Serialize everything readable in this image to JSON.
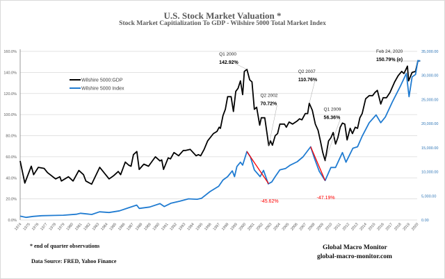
{
  "header": {
    "title": "U.S. Stock Market Valuation *",
    "subtitle": "Stock Market Capitialization To GDP -   Wilshire 5000 Total Market Index"
  },
  "footer": {
    "note": "*   end of quarter  observations",
    "source": "Data Source:  FRED, Yahoo  Finance",
    "brand": "Global Macro Monitor",
    "url": "global-macro-monitor.com"
  },
  "colors": {
    "ratio": "#000000",
    "index": "#1f7bd1",
    "drawdown": "#ff0000",
    "grid": "#d9d9d9",
    "right_axis": "#2e75b6"
  },
  "chart_data": {
    "type": "line",
    "title": "U.S. Stock Market Valuation *",
    "subtitle": "Stock Market Capitialization To GDP -   Wilshire 5000 Total Market Index",
    "xlim": [
      1974,
      2020
    ],
    "x_ticks": [
      "1974",
      "1975",
      "1976",
      "1977",
      "1978",
      "1979",
      "1980",
      "1981",
      "1982",
      "1983",
      "1984",
      "1985",
      "1986",
      "1987",
      "1988",
      "1989",
      "1990",
      "1991",
      "1992",
      "1993",
      "1994",
      "1995",
      "1996",
      "1997",
      "1998",
      "1999",
      "2000",
      "2001",
      "2002",
      "2003",
      "2004",
      "2005",
      "2006",
      "2007",
      "2008",
      "2009",
      "2010",
      "2011",
      "2012",
      "2013",
      "2014",
      "2015",
      "2016",
      "2017",
      "2018",
      "2019",
      "2020"
    ],
    "left_axis": {
      "ylim": [
        0,
        160
      ],
      "ticks": [
        "0.0%",
        "20.0%",
        "40.0%",
        "60.0%",
        "80.0%",
        "100.0%",
        "120.0%",
        "140.0%",
        "160.0%"
      ]
    },
    "right_axis": {
      "ylim": [
        0,
        35000
      ],
      "ticks": [
        "0.00",
        "5,000.00",
        "10,000.00",
        "15,000.00",
        "20,000.00",
        "25,000.00",
        "30,000.00",
        "35,000.00"
      ]
    },
    "grid": true,
    "legend": {
      "placement": "top-left",
      "entries": [
        "Wilshire 5000:GDP",
        "Wilshire 5000 Index"
      ]
    },
    "series": [
      {
        "name": "Wilshire 5000:GDP",
        "axis": "left",
        "unit": "%",
        "x": [
          1974.0,
          1974.54,
          1975.29,
          1975.56,
          1976.1,
          1976.77,
          1977.17,
          1978.11,
          1978.6,
          1978.78,
          1979.59,
          1980.13,
          1980.8,
          1981.34,
          1981.61,
          1982.28,
          1983.22,
          1984.3,
          1984.83,
          1985.37,
          1985.64,
          1986.18,
          1986.58,
          1986.85,
          1987.12,
          1987.52,
          1987.79,
          1988.33,
          1988.87,
          1989.67,
          1990.21,
          1990.4,
          1990.61,
          1991.15,
          1991.42,
          1991.82,
          1992.36,
          1992.9,
          1993.17,
          1993.7,
          1994.38,
          1994.65,
          1994.91,
          1995.32,
          1995.72,
          1996.39,
          1996.8,
          1997.06,
          1997.2,
          1997.5,
          1997.77,
          1998.04,
          1998.44,
          1998.71,
          1998.98,
          1999.25,
          1999.52,
          1999.78,
          1999.97,
          2000.27,
          2000.59,
          2000.86,
          2001.13,
          2001.4,
          2001.75,
          2001.94,
          2002.34,
          2002.8,
          2003.01,
          2003.23,
          2003.55,
          2003.82,
          2004.09,
          2004.62,
          2004.84,
          2005.16,
          2005.56,
          2006.1,
          2006.37,
          2006.64,
          2007.04,
          2007.31,
          2007.5,
          2007.85,
          2008.2,
          2008.52,
          2008.79,
          2009.06,
          2009.33,
          2009.73,
          2010.0,
          2010.27,
          2010.54,
          2010.81,
          2011.08,
          2011.34,
          2011.61,
          2011.88,
          2012.23,
          2012.5,
          2012.82,
          2013.09,
          2013.36,
          2013.63,
          2014.03,
          2014.44,
          2014.84,
          2015.11,
          2015.38,
          2015.78,
          2016.05,
          2016.45,
          2016.85,
          2017.39,
          2017.8,
          2018.2,
          2018.47,
          2018.87,
          2019.0,
          2019.41,
          2019.81,
          2020.08,
          2020.35
        ],
        "y": [
          56,
          35,
          51,
          43,
          50,
          49,
          45,
          39,
          41,
          37,
          41,
          37,
          47,
          43,
          37,
          34,
          50,
          39,
          42,
          46,
          43,
          55,
          52,
          51,
          62,
          65,
          48,
          53,
          51,
          60,
          56,
          57,
          48,
          59,
          58,
          64,
          61,
          66,
          66,
          67,
          61,
          62,
          61,
          67,
          75,
          82,
          84,
          88,
          87,
          99,
          105,
          117,
          117,
          103,
          122,
          125,
          132,
          119,
          141,
          142.92,
          133,
          131,
          105,
          107,
          90,
          97,
          97,
          70.72,
          75,
          71,
          80,
          82,
          91,
          91,
          88,
          93,
          91,
          94,
          96,
          95,
          101,
          101,
          110.76,
          104,
          91,
          85,
          75,
          64,
          56.36,
          75,
          78,
          83,
          72,
          78,
          88,
          92,
          91,
          76,
          87,
          82,
          88,
          87,
          97,
          101,
          115,
          118,
          118,
          121,
          123,
          110,
          116,
          116,
          121,
          131,
          137,
          141,
          139,
          146,
          132,
          140,
          141,
          150.79,
          151
        ]
      },
      {
        "name": "Wilshire 5000 Index",
        "axis": "right",
        "unit": "index",
        "x": [
          1974.0,
          1974.7,
          1975.5,
          1976.5,
          1978.0,
          1979.0,
          1980.5,
          1981.0,
          1982.3,
          1983.2,
          1984.3,
          1985.5,
          1986.5,
          1987.5,
          1987.8,
          1989.0,
          1990.2,
          1990.7,
          1991.5,
          1992.5,
          1993.5,
          1994.5,
          1995.0,
          1996.0,
          1997.0,
          1997.5,
          1998.04,
          1998.58,
          1998.84,
          1999.11,
          1999.52,
          1999.78,
          2000.27,
          2000.67,
          2001.13,
          2001.8,
          2002.2,
          2002.74,
          2003.15,
          2003.55,
          2004.09,
          2004.76,
          2005.3,
          2006.1,
          2006.77,
          2007.66,
          2008.12,
          2008.66,
          2009.33,
          2010.0,
          2010.54,
          2011.34,
          2011.75,
          2012.55,
          2013.09,
          2013.63,
          2014.44,
          2015.24,
          2015.78,
          2016.32,
          2017.12,
          2018.06,
          2018.74,
          2019.06,
          2019.41,
          2019.81,
          2020.08,
          2020.35
        ],
        "y": [
          800,
          550,
          750,
          900,
          950,
          1000,
          1200,
          1400,
          1150,
          1700,
          1550,
          1900,
          2500,
          3100,
          2400,
          2700,
          3400,
          2800,
          3500,
          3900,
          4400,
          4300,
          4500,
          5900,
          7000,
          8300,
          9000,
          10200,
          9000,
          11100,
          12000,
          11400,
          14200,
          13100,
          10400,
          9000,
          10300,
          7500,
          7900,
          9000,
          10400,
          10700,
          11400,
          12100,
          13100,
          15200,
          12700,
          10100,
          8200,
          10900,
          10900,
          14000,
          12000,
          14900,
          15200,
          17400,
          20200,
          21800,
          20200,
          21400,
          24500,
          27800,
          30400,
          25600,
          29700,
          30200,
          33100,
          33000
        ]
      }
    ],
    "drawdowns": [
      {
        "from": [
          2000.27,
          14200
        ],
        "to": [
          2002.8,
          7500
        ],
        "label": "-45.62%"
      },
      {
        "from": [
          2007.66,
          15200
        ],
        "to": [
          2009.33,
          8200
        ],
        "label": "-47.19%"
      }
    ],
    "annotations": [
      {
        "period": "Q1 2000",
        "value": "142.92%",
        "x": 2000.27,
        "y": 142.92
      },
      {
        "period": "Q2 2002",
        "value": "70.72%",
        "x": 2002.8,
        "y": 70.72
      },
      {
        "period": "Q2 2007",
        "value": "110.76%",
        "x": 2007.5,
        "y": 110.76
      },
      {
        "period": "Q1 2009",
        "value": "56.36%",
        "x": 2009.33,
        "y": 56.36
      },
      {
        "period": "Feb 24, 2020",
        "value": "150.79% (e)",
        "x": 2020.08,
        "y": 150.79
      }
    ]
  }
}
